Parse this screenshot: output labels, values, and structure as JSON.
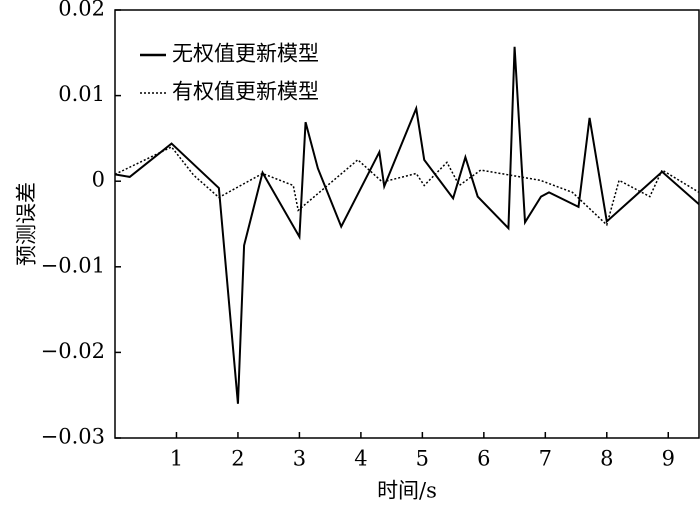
{
  "chart_data": {
    "type": "line",
    "xlabel": "时间/s",
    "ylabel": "预测误差",
    "xlim": [
      0,
      9.5
    ],
    "ylim": [
      -0.03,
      0.02
    ],
    "xticks": [
      1,
      2,
      3,
      4,
      5,
      6,
      7,
      8,
      9
    ],
    "yticks": [
      {
        "value": -0.03,
        "label": "−0.03"
      },
      {
        "value": -0.02,
        "label": "−0.02"
      },
      {
        "value": -0.01,
        "label": "−0.01"
      },
      0,
      0.01,
      0.02
    ],
    "legend": "upper left",
    "series": [
      {
        "name": "无权值更新模型",
        "color": "#000000",
        "style": "solid",
        "x": [
          0,
          0.24,
          0.92,
          1.69,
          2.0,
          2.1,
          2.4,
          3.0,
          3.1,
          3.3,
          3.68,
          4.3,
          4.38,
          4.9,
          5.03,
          5.5,
          5.7,
          5.9,
          6.4,
          6.5,
          6.67,
          6.93,
          7.06,
          7.54,
          7.72,
          8.0,
          8.9,
          9.5
        ],
        "values": [
          0.0008,
          0.0005,
          0.0044,
          -0.0008,
          -0.026,
          -0.0075,
          0.001,
          -0.0065,
          0.0069,
          0.0015,
          -0.0053,
          0.0034,
          -0.0006,
          0.0085,
          0.0025,
          -0.002,
          0.0028,
          -0.0018,
          -0.0055,
          0.0157,
          -0.0048,
          -0.0018,
          -0.0013,
          -0.003,
          0.0074,
          -0.0047,
          0.0011,
          -0.0027
        ]
      },
      {
        "name": "有权值更新模型",
        "color": "#000000",
        "style": "dotted",
        "x": [
          0,
          0.92,
          1.28,
          1.69,
          2.4,
          2.9,
          2.98,
          3.95,
          4.35,
          4.9,
          5.03,
          5.4,
          5.6,
          5.95,
          6.92,
          7.44,
          8.0,
          8.2,
          8.7,
          8.9,
          9.5
        ],
        "values": [
          0.0008,
          0.004,
          0.0007,
          -0.0019,
          0.0009,
          -0.0005,
          -0.0034,
          0.0025,
          -0.0001,
          0.0009,
          -0.0005,
          0.0022,
          -0.0005,
          0.0013,
          0.0001,
          -0.0013,
          -0.0051,
          0.0001,
          -0.0018,
          0.0013,
          -0.0013
        ]
      }
    ]
  }
}
